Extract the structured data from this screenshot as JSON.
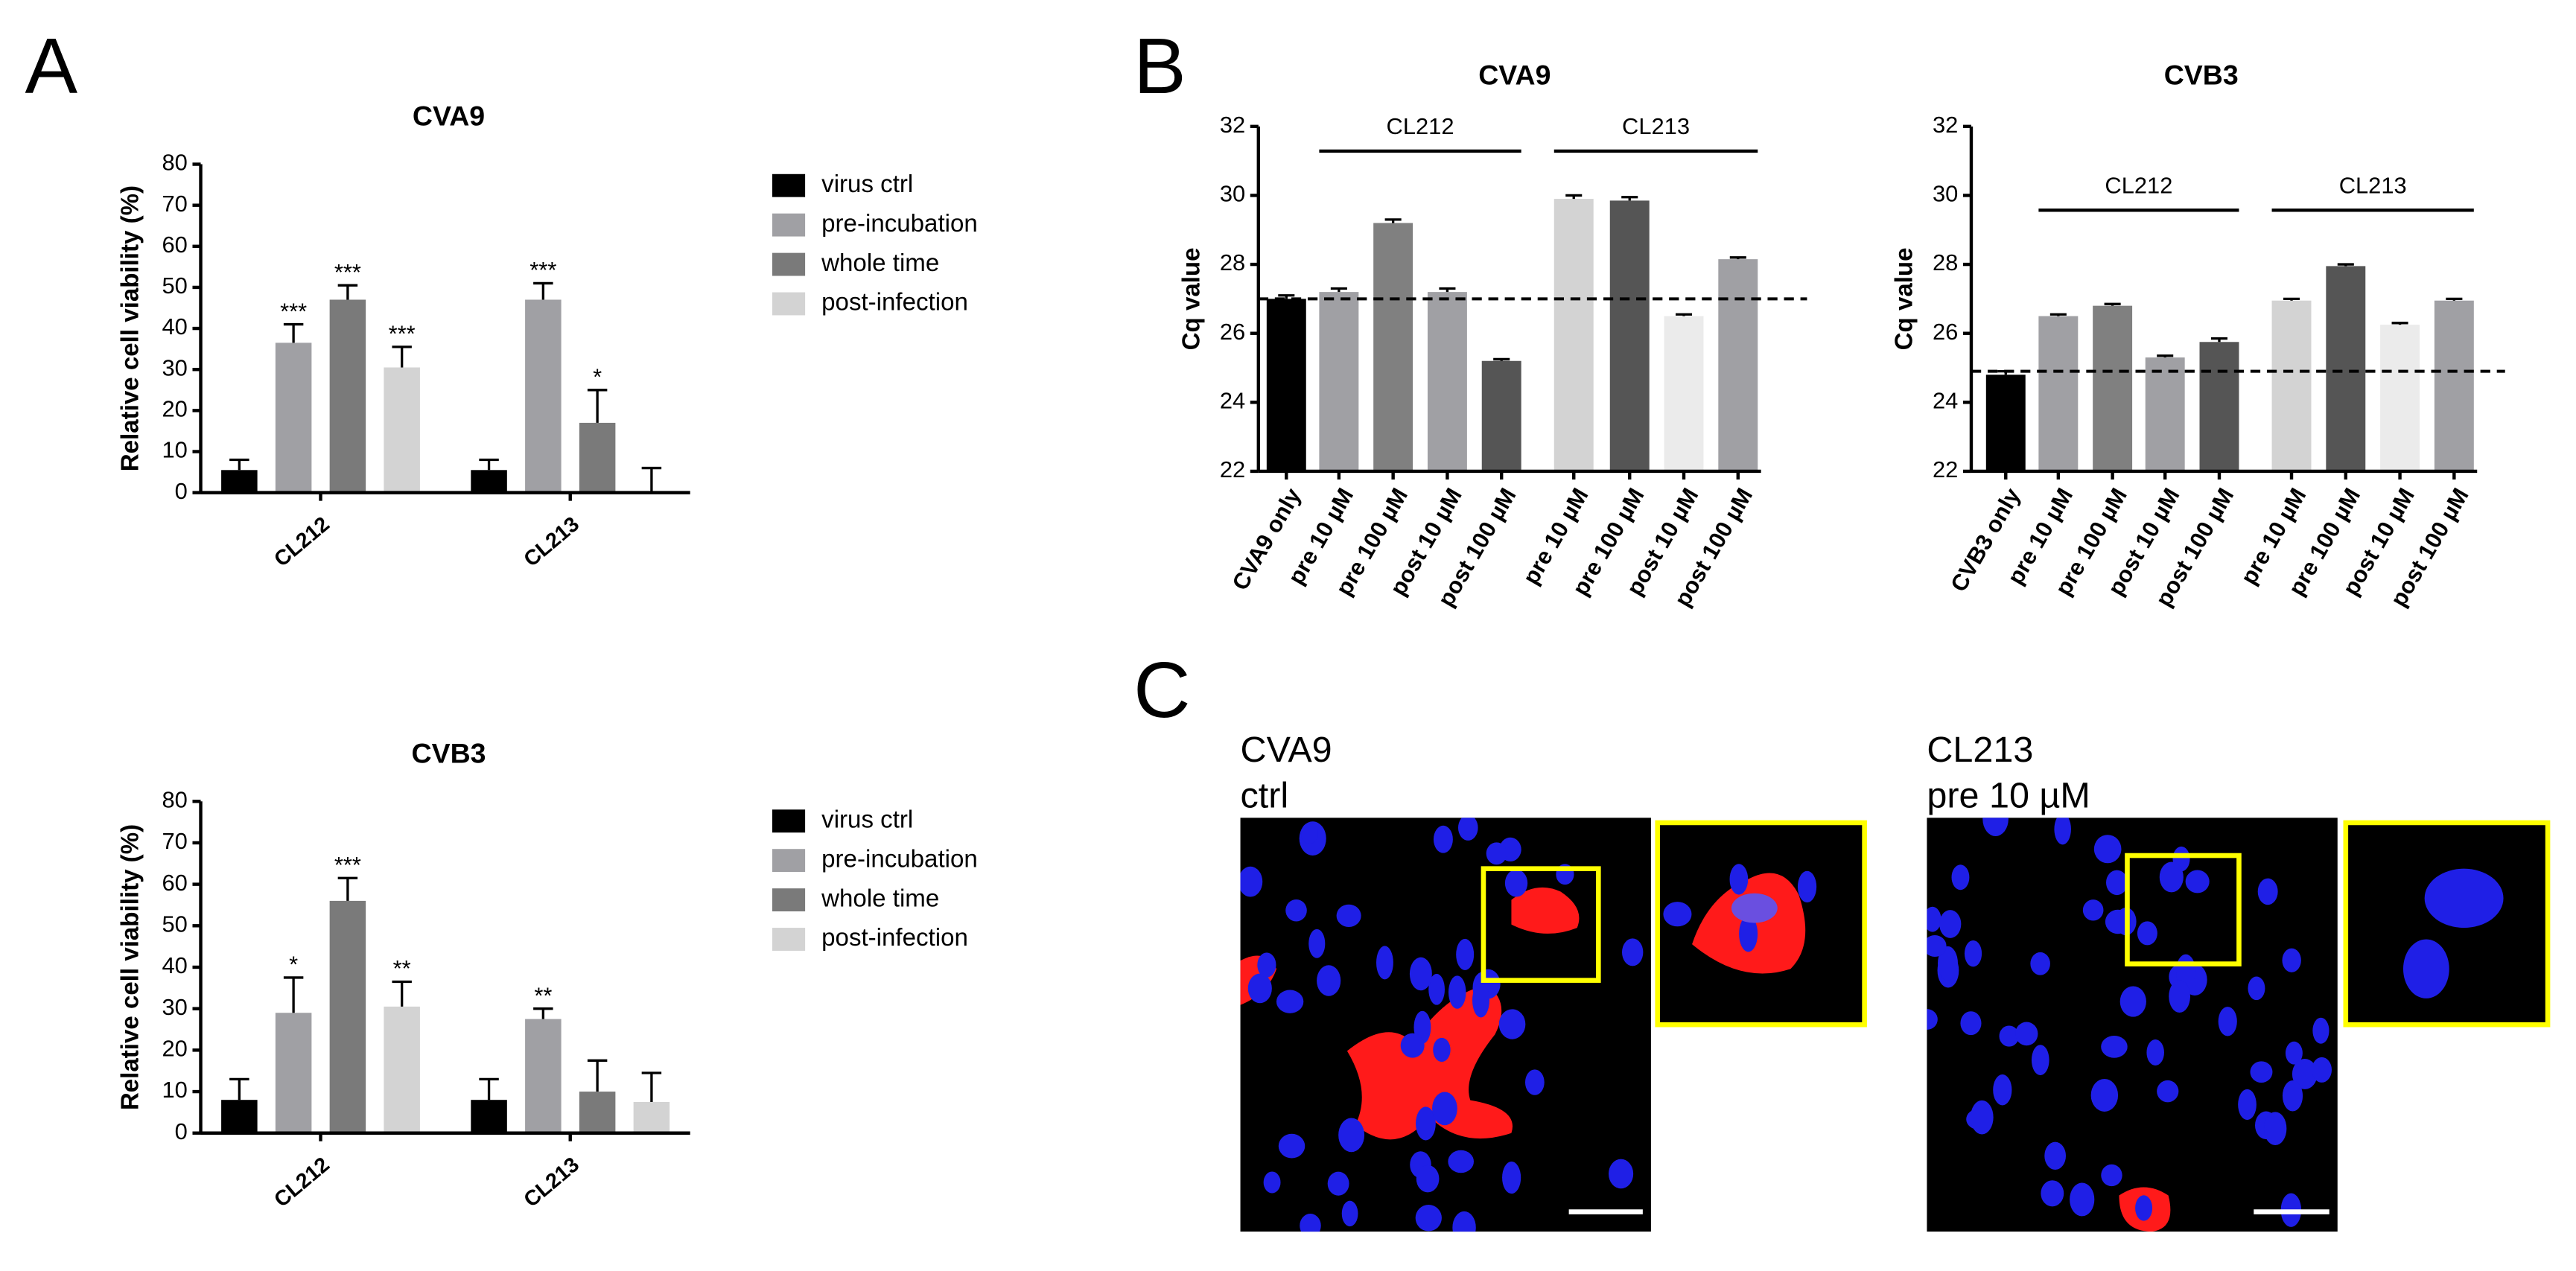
{
  "panel_labels": [
    "A",
    "B",
    "C"
  ],
  "chart_data": [
    {
      "type": "grouped_bar",
      "title": "CVA9",
      "y_label": "Relative cell viability (%)",
      "categories": [
        "CL212",
        "CL213"
      ],
      "ylim": [
        0,
        80
      ],
      "yticks": [
        0,
        10,
        20,
        30,
        40,
        50,
        60,
        70,
        80
      ],
      "series": [
        {
          "name": "virus ctrl",
          "color": "#000000",
          "values": [
            5.5,
            5.5
          ],
          "errors": [
            2.5,
            2.5
          ],
          "annotations": [
            null,
            null
          ]
        },
        {
          "name": "pre-incubation",
          "color": "#a0a0a4",
          "values": [
            36.5,
            47
          ],
          "errors": [
            4.5,
            4
          ],
          "annotations": [
            "***",
            "***"
          ]
        },
        {
          "name": "whole time",
          "color": "#7a7a7a",
          "values": [
            47,
            17
          ],
          "errors": [
            3.5,
            8
          ],
          "annotations": [
            "***",
            "*"
          ]
        },
        {
          "name": "post-infection",
          "color": "#d3d3d3",
          "values": [
            30.5,
            0
          ],
          "errors": [
            5,
            6
          ],
          "annotations": [
            "***",
            null
          ]
        }
      ]
    },
    {
      "type": "grouped_bar",
      "title": "CVB3",
      "y_label": "Relative cell viability (%)",
      "categories": [
        "CL212",
        "CL213"
      ],
      "ylim": [
        0,
        80
      ],
      "yticks": [
        0,
        10,
        20,
        30,
        40,
        50,
        60,
        70,
        80
      ],
      "series": [
        {
          "name": "virus ctrl",
          "color": "#000000",
          "values": [
            8,
            8
          ],
          "errors": [
            5,
            5
          ],
          "annotations": [
            null,
            null
          ]
        },
        {
          "name": "pre-incubation",
          "color": "#a0a0a4",
          "values": [
            29,
            27.5
          ],
          "errors": [
            8.5,
            2.5
          ],
          "annotations": [
            "*",
            "**"
          ]
        },
        {
          "name": "whole time",
          "color": "#7a7a7a",
          "values": [
            56,
            10
          ],
          "errors": [
            5.5,
            7.5
          ],
          "annotations": [
            "***",
            null
          ]
        },
        {
          "name": "post-infection",
          "color": "#d3d3d3",
          "values": [
            30.5,
            7.5
          ],
          "errors": [
            6,
            7
          ],
          "annotations": [
            "**",
            null
          ]
        }
      ]
    },
    {
      "type": "bar",
      "title": "CVA9",
      "y_label": "Cq value",
      "categories": [
        "CVA9 only",
        "pre 10 µM",
        "pre 100 µM",
        "post 10 µM",
        "post 100 µM",
        "pre 10 µM",
        "pre 100 µM",
        "post 10 µM",
        "post 100 µM"
      ],
      "values": [
        27.0,
        27.2,
        29.2,
        27.2,
        25.2,
        29.9,
        29.85,
        26.5,
        28.15
      ],
      "errors": [
        0.1,
        0.1,
        0.1,
        0.1,
        0.05,
        0.1,
        0.1,
        0.05,
        0.05
      ],
      "colors": [
        "#000000",
        "#a0a0a4",
        "#808080",
        "#a0a0a4",
        "#555555",
        "#d3d3d3",
        "#555555",
        "#ebebeb",
        "#a0a0a4"
      ],
      "group_labels": [
        "CL212",
        "CL213"
      ],
      "reference_line": 27,
      "ylim": [
        22,
        32
      ],
      "yticks": [
        22,
        24,
        26,
        28,
        30,
        32
      ]
    },
    {
      "type": "bar",
      "title": "CVB3",
      "y_label": "Cq value",
      "categories": [
        "CVB3 only",
        "pre 10 µM",
        "pre 100 µM",
        "post 10 µM",
        "post 100 µM",
        "pre 10 µM",
        "pre 100 µM",
        "post 10 µM",
        "post 100 µM"
      ],
      "values": [
        24.8,
        26.5,
        26.8,
        25.3,
        25.75,
        26.95,
        27.95,
        26.25,
        26.95
      ],
      "errors": [
        0.1,
        0.05,
        0.05,
        0.05,
        0.1,
        0.05,
        0.05,
        0.05,
        0.05
      ],
      "colors": [
        "#000000",
        "#a0a0a4",
        "#808080",
        "#a0a0a4",
        "#555555",
        "#d3d3d3",
        "#555555",
        "#ebebeb",
        "#a0a0a4"
      ],
      "group_labels": [
        "CL212",
        "CL213"
      ],
      "reference_line": 24.9,
      "ylim": [
        22,
        32
      ],
      "yticks": [
        22,
        24,
        26,
        28,
        30,
        32
      ]
    }
  ],
  "images": [
    {
      "caption": [
        "CVA9",
        "ctrl"
      ]
    },
    {
      "caption": [
        "CL213",
        "pre 10 µM"
      ]
    }
  ]
}
